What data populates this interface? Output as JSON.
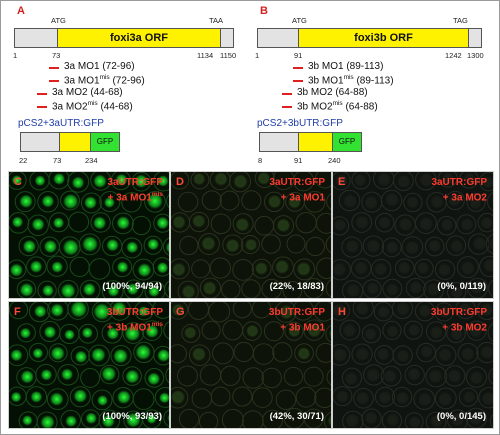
{
  "panel_a": {
    "label": "A",
    "atg": "ATG",
    "stop": "TAA",
    "orf": "foxi3a ORF",
    "pos_start": "1",
    "pos_orf": "73",
    "pos_end1": "1134",
    "pos_end2": "1150",
    "mo": [
      {
        "text": "3a MO1 (72-96)",
        "mis": false
      },
      {
        "text": "3a MO1",
        "sup": "mis",
        "rest": " (72-96)",
        "mis": true
      },
      {
        "text": "3a MO2 (44-68)",
        "mis": false
      },
      {
        "text": "3a MO2",
        "sup": "mis",
        "rest": " (44-68)",
        "mis": true
      }
    ],
    "construct": "pCS2+3aUTR:GFP",
    "c_pos1": "22",
    "c_pos2": "73",
    "c_pos3": "234",
    "gfp": "GFP"
  },
  "panel_b": {
    "label": "B",
    "atg": "ATG",
    "stop": "TAG",
    "orf": "foxi3b ORF",
    "pos_start": "1",
    "pos_orf": "91",
    "pos_end1": "1242",
    "pos_end2": "1300",
    "mo": [
      {
        "text": "3b MO1 (89-113)",
        "mis": false
      },
      {
        "text": "3b MO1",
        "sup": "mis",
        "rest": " (89-113)",
        "mis": true
      },
      {
        "text": "3b MO2 (64-88)",
        "mis": false
      },
      {
        "text": "3b MO2",
        "sup": "mis",
        "rest": " (64-88)",
        "mis": true
      }
    ],
    "construct": "pCS2+3bUTR:GFP",
    "c_pos1": "8",
    "c_pos2": "91",
    "c_pos3": "240",
    "gfp": "GFP"
  },
  "micrographs": [
    {
      "letter": "C",
      "line1": "3aUTR:GFP",
      "line2": "+ 3a MO1",
      "sup": "mis",
      "stat": "(100%, 94/94)",
      "intensity": "bright"
    },
    {
      "letter": "D",
      "line1": "3aUTR:GFP",
      "line2": "+ 3a MO1",
      "sup": "",
      "stat": "(22%, 18/83)",
      "intensity": "dim"
    },
    {
      "letter": "E",
      "line1": "3aUTR:GFP",
      "line2": "+ 3a MO2",
      "sup": "",
      "stat": "(0%, 0/119)",
      "intensity": "none"
    },
    {
      "letter": "F",
      "line1": "3bUTR:GFP",
      "line2": "+ 3b MO1",
      "sup": "mis",
      "stat": "(100%, 93/93)",
      "intensity": "bright"
    },
    {
      "letter": "G",
      "line1": "3bUTR:GFP",
      "line2": "+ 3b MO1",
      "sup": "",
      "stat": "(42%, 30/71)",
      "intensity": "dim"
    },
    {
      "letter": "H",
      "line1": "3bUTR:GFP",
      "line2": "+ 3b MO2",
      "sup": "",
      "stat": "(0%, 0/145)",
      "intensity": "none"
    }
  ],
  "colors": {
    "orf": "#fff200",
    "utr": "#e3e3e3",
    "gfp": "#33e133",
    "mo": "#e02020",
    "construct": "#1f3da8",
    "label": "#d42020"
  }
}
